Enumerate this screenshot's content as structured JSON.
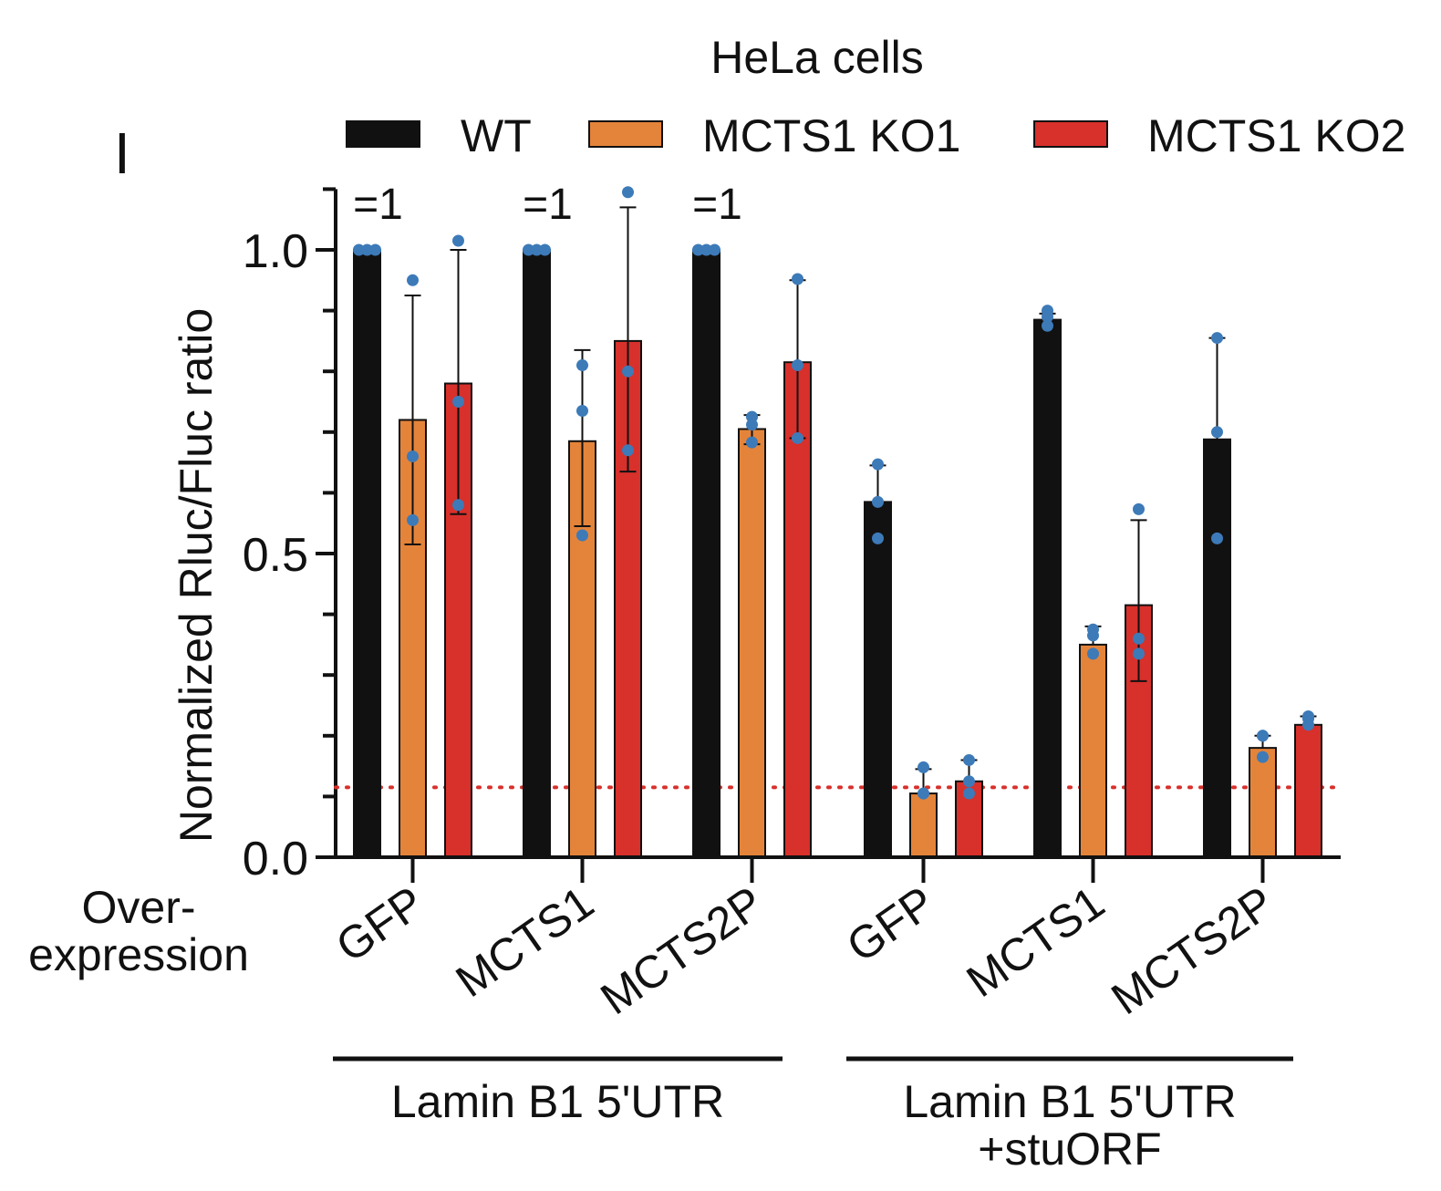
{
  "panel_label": "I",
  "chart_data": {
    "type": "bar",
    "title": "HeLa cells",
    "ylabel": "Normalized Rluc/Fluc ratio",
    "xlabel": "Over-\nexpression",
    "ylim": [
      0,
      1.1
    ],
    "yticks": [
      {
        "value": 0.0,
        "label": "0.0"
      },
      {
        "value": 0.5,
        "label": "0.5"
      },
      {
        "value": 1.0,
        "label": "1.0"
      }
    ],
    "reference_line": {
      "value": 0.115,
      "color": "#d8302b",
      "style": "dotted"
    },
    "legend_position": "top",
    "series": [
      {
        "name": "WT",
        "color": "#111111"
      },
      {
        "name": "MCTS1 KO1",
        "color": "#e4843a"
      },
      {
        "name": "MCTS1 KO2",
        "color": "#d8302b"
      }
    ],
    "point_color": "#3d7ab8",
    "categories": [
      "GFP",
      "MCTS1",
      "MCTS2P",
      "GFP",
      "MCTS1",
      "MCTS2P"
    ],
    "groups": [
      {
        "label": "Lamin B1 5'UTR",
        "bars": [
          {
            "category": "GFP",
            "series": "WT",
            "value": 1.0,
            "err_hi": 1.0,
            "err_lo": 1.0,
            "points": [
              1.0,
              1.0,
              1.0
            ],
            "annotation": "=1"
          },
          {
            "category": "GFP",
            "series": "MCTS1 KO1",
            "value": 0.72,
            "err_hi": 0.925,
            "err_lo": 0.515,
            "points": [
              0.95,
              0.66,
              0.555
            ]
          },
          {
            "category": "GFP",
            "series": "MCTS1 KO2",
            "value": 0.78,
            "err_hi": 1.0,
            "err_lo": 0.565,
            "points": [
              1.015,
              0.75,
              0.58
            ]
          },
          {
            "category": "MCTS1",
            "series": "WT",
            "value": 1.0,
            "err_hi": 1.0,
            "err_lo": 1.0,
            "points": [
              1.0,
              1.0,
              1.0
            ],
            "annotation": "=1"
          },
          {
            "category": "MCTS1",
            "series": "MCTS1 KO1",
            "value": 0.685,
            "err_hi": 0.835,
            "err_lo": 0.545,
            "points": [
              0.81,
              0.735,
              0.53
            ]
          },
          {
            "category": "MCTS1",
            "series": "MCTS1 KO2",
            "value": 0.85,
            "err_hi": 1.07,
            "err_lo": 0.635,
            "points": [
              1.095,
              0.8,
              0.67
            ]
          },
          {
            "category": "MCTS2P",
            "series": "WT",
            "value": 1.0,
            "err_hi": 1.0,
            "err_lo": 1.0,
            "points": [
              1.0,
              1.0,
              1.0
            ],
            "annotation": "=1"
          },
          {
            "category": "MCTS2P",
            "series": "MCTS1 KO1",
            "value": 0.705,
            "err_hi": 0.728,
            "err_lo": 0.68,
            "points": [
              0.725,
              0.712,
              0.683
            ]
          },
          {
            "category": "MCTS2P",
            "series": "MCTS1 KO2",
            "value": 0.815,
            "err_hi": 0.95,
            "err_lo": 0.69,
            "points": [
              0.952,
              0.81,
              0.69
            ]
          }
        ]
      },
      {
        "label": "Lamin B1 5'UTR\n+stuORF",
        "bars": [
          {
            "category": "GFP",
            "series": "WT",
            "value": 0.585,
            "err_hi": 0.645,
            "err_lo": 0.585,
            "points": [
              0.647,
              0.585,
              0.525
            ]
          },
          {
            "category": "GFP",
            "series": "MCTS1 KO1",
            "value": 0.105,
            "err_hi": 0.145,
            "err_lo": 0.105,
            "points": [
              0.148,
              0.105,
              0.105
            ]
          },
          {
            "category": "GFP",
            "series": "MCTS1 KO2",
            "value": 0.125,
            "err_hi": 0.16,
            "err_lo": 0.125,
            "points": [
              0.16,
              0.125,
              0.105
            ]
          },
          {
            "category": "MCTS1",
            "series": "WT",
            "value": 0.885,
            "err_hi": 0.895,
            "err_lo": 0.885,
            "points": [
              0.9,
              0.89,
              0.875
            ]
          },
          {
            "category": "MCTS1",
            "series": "MCTS1 KO1",
            "value": 0.35,
            "err_hi": 0.38,
            "err_lo": 0.35,
            "points": [
              0.375,
              0.365,
              0.335
            ]
          },
          {
            "category": "MCTS1",
            "series": "MCTS1 KO2",
            "value": 0.415,
            "err_hi": 0.555,
            "err_lo": 0.29,
            "points": [
              0.573,
              0.36,
              0.335
            ]
          },
          {
            "category": "MCTS2P",
            "series": "WT",
            "value": 0.688,
            "err_hi": 0.855,
            "err_lo": 0.688,
            "points": [
              0.855,
              0.7,
              0.525
            ]
          },
          {
            "category": "MCTS2P",
            "series": "MCTS1 KO1",
            "value": 0.18,
            "err_hi": 0.2,
            "err_lo": 0.18,
            "points": [
              0.2,
              0.2,
              0.165
            ]
          },
          {
            "category": "MCTS2P",
            "series": "MCTS1 KO2",
            "value": 0.218,
            "err_hi": 0.232,
            "err_lo": 0.218,
            "points": [
              0.232,
              0.218,
              0.228
            ]
          }
        ]
      }
    ]
  }
}
